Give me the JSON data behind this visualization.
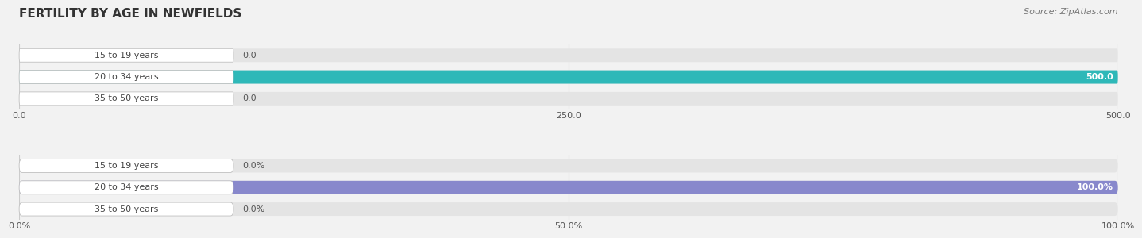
{
  "title": "FERTILITY BY AGE IN NEWFIELDS",
  "source": "Source: ZipAtlas.com",
  "categories": [
    "15 to 19 years",
    "20 to 34 years",
    "35 to 50 years"
  ],
  "values_count": [
    0.0,
    500.0,
    0.0
  ],
  "values_pct": [
    0.0,
    100.0,
    0.0
  ],
  "xlim_count": [
    0,
    500
  ],
  "xlim_pct": [
    0,
    100
  ],
  "xticks_count": [
    0.0,
    250.0,
    500.0
  ],
  "xticks_pct": [
    0.0,
    50.0,
    100.0
  ],
  "bar_color_count": "#2eb8b8",
  "bar_color_pct": "#8888cc",
  "bar_bg_color": "#e4e4e4",
  "label_bg_color": "#ffffff",
  "bar_height": 0.62,
  "value_label_color_zero": "#555555",
  "value_label_color_full": "#ffffff",
  "title_fontsize": 11,
  "source_fontsize": 8,
  "label_fontsize": 8,
  "tick_fontsize": 8,
  "background_color": "#f2f2f2",
  "grid_color": "#cccccc"
}
